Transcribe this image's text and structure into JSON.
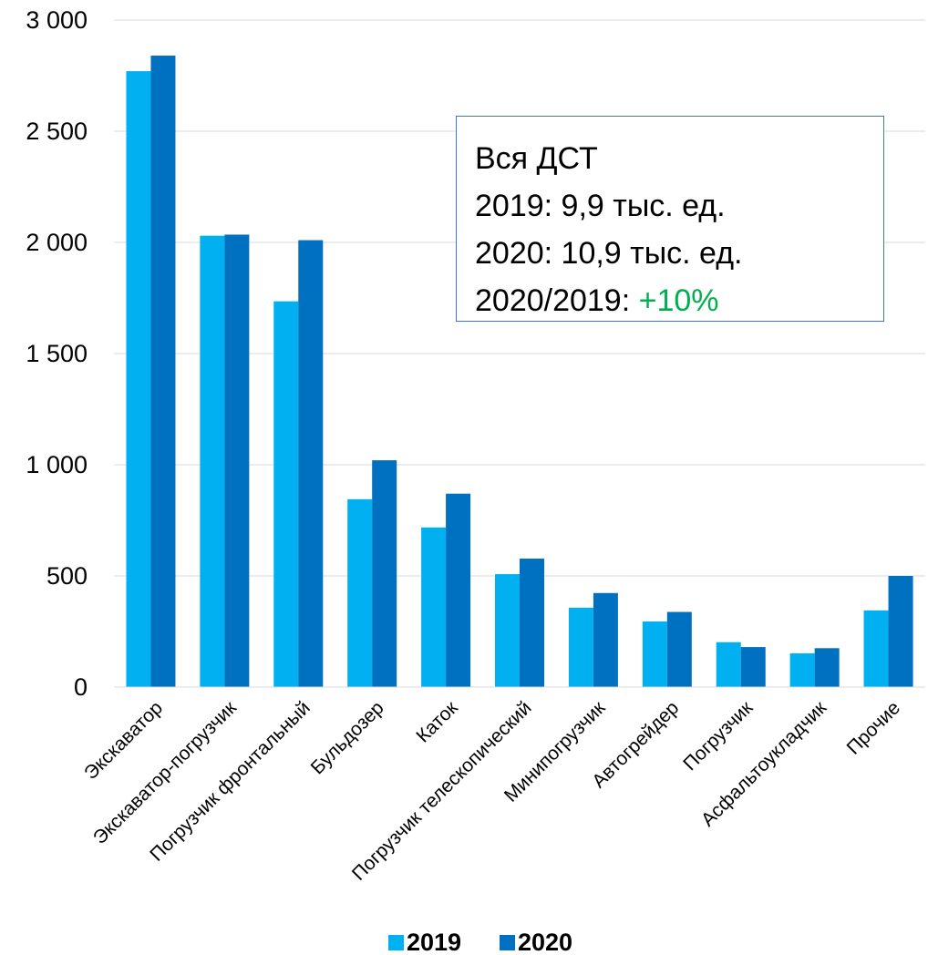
{
  "chart_data": {
    "type": "bar",
    "categories": [
      "Экскаватор",
      "Экскаватор-погрузчик",
      "Погрузчик фронтальный",
      "Бульдозер",
      "Каток",
      "Погрузчик телескопический",
      "Минипогрузчик",
      "Автогрейдер",
      "Погрузчик",
      "Асфальтоукладчик",
      "Прочие"
    ],
    "series": [
      {
        "name": "2019",
        "color": "#00b0f0",
        "values": [
          2770,
          2030,
          1735,
          845,
          718,
          508,
          357,
          295,
          202,
          152,
          345
        ]
      },
      {
        "name": "2020",
        "color": "#0070c0",
        "values": [
          2840,
          2035,
          2010,
          1020,
          870,
          578,
          423,
          338,
          180,
          175,
          500
        ]
      }
    ],
    "yticks": [
      "0",
      "500",
      "1 000",
      "1 500",
      "2 000",
      "2 500",
      "3 000"
    ],
    "ytick_values": [
      0,
      500,
      1000,
      1500,
      2000,
      2500,
      3000
    ],
    "ylim": [
      0,
      3000
    ],
    "grid": true,
    "legend_position": "bottom",
    "title": "",
    "xlabel": "",
    "ylabel": ""
  },
  "annotation": {
    "line1": "Вся ДСТ",
    "line2": "2019: 9,9 тыс. ед.",
    "line3": "2020: 10,9 тыс. ед.",
    "line4_prefix": "2020/2019: ",
    "line4_growth": "+10%"
  }
}
